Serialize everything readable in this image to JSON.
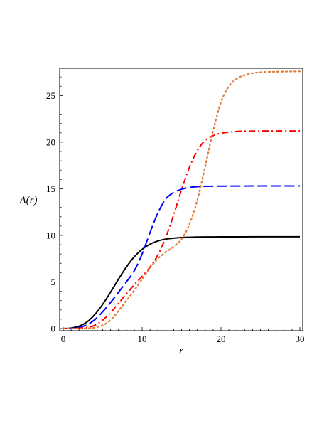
{
  "chart_data": {
    "type": "line",
    "xlabel": "r",
    "ylabel": "A(r)",
    "xlim": [
      0,
      30
    ],
    "ylim": [
      0,
      27.7
    ],
    "xticks": [
      0,
      10,
      20,
      30
    ],
    "yticks": [
      0,
      5,
      10,
      15,
      20,
      25
    ],
    "grid": false,
    "series": [
      {
        "color": "#000000",
        "dash": "solid",
        "x": [
          0,
          1,
          2,
          3,
          4,
          5,
          6,
          7,
          8,
          9,
          10,
          11,
          12,
          13,
          14,
          15,
          16,
          17,
          18,
          20,
          22,
          25,
          30
        ],
        "y": [
          0,
          0.05,
          0.25,
          0.7,
          1.5,
          2.6,
          3.9,
          5.3,
          6.6,
          7.7,
          8.5,
          9.05,
          9.4,
          9.6,
          9.7,
          9.77,
          9.8,
          9.82,
          9.83,
          9.84,
          9.84,
          9.85,
          9.85
        ]
      },
      {
        "color": "#0000ff",
        "dash": "long-dash",
        "x": [
          0,
          1,
          2,
          3,
          4,
          5,
          6,
          7,
          8,
          9,
          10,
          11,
          12,
          13,
          14,
          15,
          16,
          17,
          18,
          20,
          22,
          25,
          30
        ],
        "y": [
          0,
          0.02,
          0.12,
          0.4,
          0.95,
          1.8,
          2.8,
          3.9,
          5.0,
          6.2,
          8.0,
          10.3,
          12.4,
          13.9,
          14.6,
          14.95,
          15.15,
          15.22,
          15.26,
          15.28,
          15.29,
          15.3,
          15.3
        ]
      },
      {
        "color": "#ff0000",
        "dash": "dash-dot",
        "x": [
          0,
          1,
          2,
          3,
          4,
          5,
          6,
          7,
          8,
          9,
          10,
          11,
          12,
          13,
          14,
          15,
          16,
          17,
          18,
          19,
          20,
          22,
          25,
          30
        ],
        "y": [
          0,
          0,
          0.03,
          0.12,
          0.35,
          0.9,
          1.7,
          2.7,
          3.7,
          4.7,
          5.6,
          6.6,
          7.9,
          9.8,
          12.2,
          14.9,
          17.3,
          19.1,
          20.2,
          20.7,
          20.95,
          21.15,
          21.2,
          21.2
        ]
      },
      {
        "color": "#e07b39",
        "dash": "dotted",
        "x": [
          0,
          2,
          3,
          4,
          5,
          6,
          7,
          8,
          9,
          10,
          11,
          12,
          13,
          14,
          15,
          16,
          17,
          18,
          19,
          20,
          21,
          22,
          23,
          24,
          25,
          26,
          30
        ],
        "y": [
          0,
          0,
          0.02,
          0.1,
          0.35,
          0.9,
          1.9,
          3.0,
          4.1,
          5.3,
          6.5,
          7.5,
          8.2,
          8.8,
          9.6,
          11.2,
          13.8,
          17.4,
          21.2,
          24.3,
          26.0,
          26.8,
          27.2,
          27.4,
          27.5,
          27.55,
          27.6
        ]
      }
    ]
  }
}
